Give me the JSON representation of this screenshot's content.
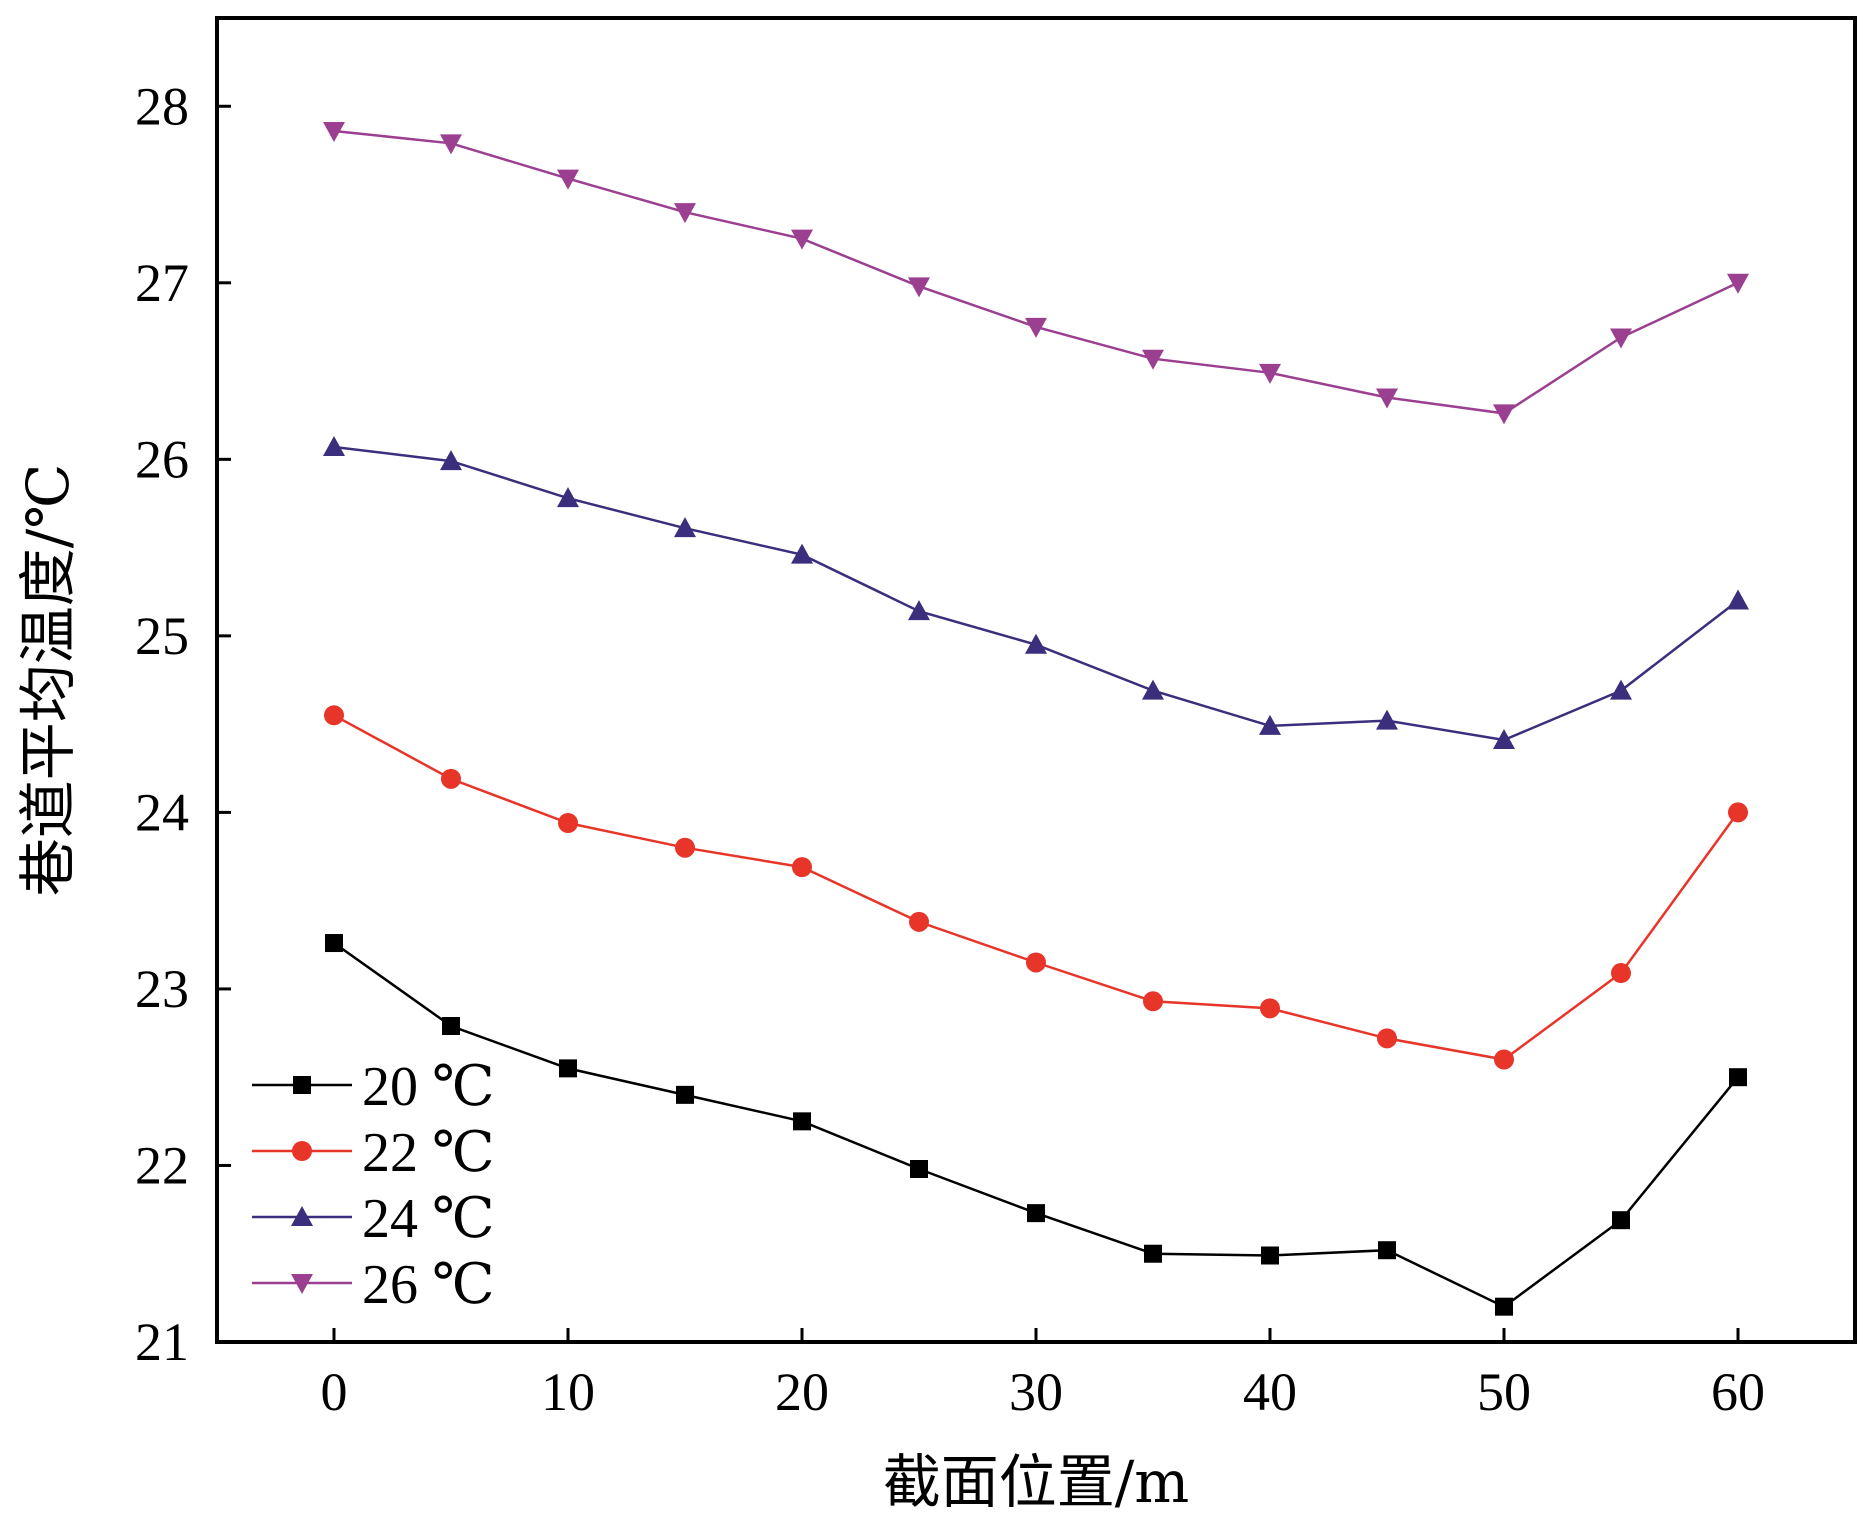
{
  "chart_data": {
    "type": "line",
    "title": "",
    "xlabel": "截面位置/m",
    "ylabel": "巷道平均温度/℃",
    "xlim": [
      -5,
      65
    ],
    "ylim": [
      21,
      28.5
    ],
    "xticks": [
      "0",
      "10",
      "20",
      "30",
      "40",
      "50",
      "60"
    ],
    "yticks": [
      "21",
      "22",
      "23",
      "24",
      "25",
      "26",
      "27",
      "28"
    ],
    "grid": false,
    "legend_position": "bottom-left",
    "x": [
      0,
      5,
      10,
      15,
      20,
      25,
      30,
      35,
      40,
      45,
      50,
      55,
      60
    ],
    "series": [
      {
        "name": "20 ℃",
        "color": "#000000",
        "marker": "square",
        "values": [
          23.26,
          22.79,
          22.55,
          22.4,
          22.25,
          21.98,
          21.73,
          21.5,
          21.49,
          21.52,
          21.2,
          21.69,
          22.5
        ]
      },
      {
        "name": "22 ℃",
        "color": "#e8352a",
        "marker": "circle",
        "values": [
          24.55,
          24.19,
          23.94,
          23.8,
          23.69,
          23.38,
          23.15,
          22.93,
          22.89,
          22.72,
          22.6,
          23.09,
          24.0
        ]
      },
      {
        "name": "24 ℃",
        "color": "#3b2f7d",
        "marker": "triangle-up",
        "values": [
          26.07,
          25.99,
          25.78,
          25.61,
          25.46,
          25.14,
          24.95,
          24.69,
          24.49,
          24.52,
          24.41,
          24.69,
          25.2
        ]
      },
      {
        "name": "26 ℃",
        "color": "#9b3f91",
        "marker": "triangle-down",
        "values": [
          27.86,
          27.79,
          27.59,
          27.4,
          27.25,
          26.98,
          26.75,
          26.57,
          26.49,
          26.35,
          26.26,
          26.69,
          27.0
        ]
      }
    ]
  }
}
